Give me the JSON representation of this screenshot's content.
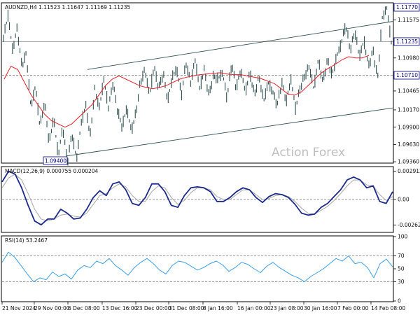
{
  "chart_data": [
    {
      "type": "line",
      "label": "AUDNZD,H4 1.11523 1.11647 1.11169 1.11235",
      "symbol": "AUDNZD",
      "timeframe": "H4",
      "ohlc_readout": {
        "open": 1.11523,
        "high": 1.11647,
        "low": 1.11169,
        "close": 1.11235
      },
      "ylim": [
        1.0935,
        1.1183
      ],
      "y_ticks": [
        "1.11575",
        "1.11235",
        "1.10980",
        "1.10710",
        "1.10465",
        "1.10170",
        "1.09900",
        "1.09630",
        "1.09360"
      ],
      "tick_values": [
        1.11575,
        1.11235,
        1.1098,
        1.1071,
        1.10465,
        1.1017,
        1.099,
        1.0963,
        1.0936
      ],
      "x_ticks": [
        "21 Nov 2024",
        "29 Nov 00:00",
        "6 Dec 08:00",
        "13 Dec 16:00",
        "23 Dec 00:00",
        "31 Dec 08:00",
        "8 Jan 16:00",
        "16 Jan 00:00",
        "23 Jan 08:00",
        "30 Jan 16:00",
        "7 Feb 00:00",
        "14 Feb 08:00"
      ],
      "price_tags": {
        "high": "1.11770",
        "current": "1.11235",
        "level": "1.10710"
      },
      "low_label": "1.09400",
      "watermark": "Action Forex",
      "price_path": [
        1.113,
        1.1165,
        1.111,
        1.1145,
        1.1085,
        1.1105,
        1.102,
        1.1055,
        1.099,
        1.103,
        1.0965,
        1.1005,
        1.0945,
        1.099,
        1.0935,
        1.098,
        1.094,
        1.0995,
        1.1025,
        1.0975,
        1.105,
        1.102,
        1.1065,
        1.102,
        1.106,
        1.1015,
        1.099,
        1.102,
        1.0985,
        1.101,
        1.106,
        1.108,
        1.104,
        1.1085,
        1.105,
        1.1075,
        1.103,
        1.107,
        1.108,
        1.104,
        1.109,
        1.106,
        1.1095,
        1.105,
        1.108,
        1.104,
        1.107,
        1.1065,
        1.1075,
        1.1035,
        1.109,
        1.105,
        1.108,
        1.1045,
        1.1075,
        1.104,
        1.107,
        1.103,
        1.106,
        1.1045,
        1.1025,
        1.106,
        1.103,
        1.1065,
        1.102,
        1.105,
        1.107,
        1.1085,
        1.105,
        1.1095,
        1.106,
        1.1095,
        1.107,
        1.11,
        1.112,
        1.115,
        1.111,
        1.114,
        1.11,
        1.1125,
        1.1085,
        1.111,
        1.1065,
        1.116,
        1.1177,
        1.1123
      ],
      "ma_path": [
        1.1065,
        1.1085,
        1.108,
        1.106,
        1.104,
        1.1025,
        1.101,
        1.1,
        1.0995,
        1.099,
        1.0995,
        1.1005,
        1.1015,
        1.1025,
        1.104,
        1.1055,
        1.1065,
        1.107,
        1.1065,
        1.106,
        1.1055,
        1.1052,
        1.105,
        1.1052,
        1.1055,
        1.106,
        1.1065,
        1.1068,
        1.107,
        1.1072,
        1.1073,
        1.1074,
        1.1075,
        1.1073,
        1.1072,
        1.1072,
        1.107,
        1.1068,
        1.1066,
        1.1062,
        1.1058,
        1.105,
        1.1042,
        1.104,
        1.1045,
        1.1055,
        1.1065,
        1.1075,
        1.1082,
        1.1088,
        1.1095,
        1.11,
        1.1098,
        1.1098,
        1.1102
      ],
      "channel": {
        "upper": [
          1.108,
          1.1155
        ],
        "lower": [
          1.0945,
          1.102
        ]
      }
    },
    {
      "type": "line",
      "label": "MACD(12,26,9) 0.000755 0.000204",
      "params": "12,26,9",
      "values_readout": {
        "macd": 0.000755,
        "signal": 0.000204
      },
      "ylim": [
        -0.0033,
        0.0033
      ],
      "y_ticks": [
        "0.002912",
        "0.00",
        "-0.002625"
      ],
      "tick_values": [
        0.002912,
        0.0,
        -0.002625
      ],
      "macd_path": [
        0.0018,
        0.0029,
        0.0026,
        0.0012,
        -0.0006,
        -0.0022,
        -0.0026,
        -0.002,
        -0.002,
        -0.001,
        -0.0014,
        -0.002,
        -0.0019,
        -0.001,
        0.0002,
        0.0009,
        0.0004,
        0.0016,
        0.0018,
        0.001,
        -0.0004,
        -0.0006,
        0.0002,
        0.0016,
        0.0016,
        0.0008,
        -0.0006,
        -0.0008,
        0.0004,
        0.0012,
        0.0013,
        0.0012,
        0.0008,
        -0.0002,
        -0.0002,
        0.0002,
        0.0008,
        0.0012,
        0.001,
        0.0002,
        -0.0003,
        0.0003,
        0.0006,
        0.0005,
        0.0002,
        -0.0005,
        -0.0014,
        -0.0016,
        -0.0015,
        -0.0008,
        -0.0004,
        0.0003,
        0.001,
        0.002,
        0.0023,
        0.002,
        0.0012,
        0.0014,
        -0.0002,
        -0.0004,
        0.0008
      ],
      "signal_path": [
        0.0012,
        0.0022,
        0.0026,
        0.002,
        0.0006,
        -0.001,
        -0.002,
        -0.0022,
        -0.002,
        -0.0016,
        -0.0015,
        -0.0017,
        -0.0018,
        -0.0014,
        -0.0005,
        0.0004,
        0.0006,
        0.0012,
        0.0016,
        0.0013,
        0.0004,
        -0.0002,
        -0.0002,
        0.0008,
        0.0014,
        0.0012,
        0.0002,
        -0.0005,
        -0.0001,
        0.0007,
        0.0012,
        0.0012,
        0.001,
        0.0003,
        0.0,
        0.0,
        0.0005,
        0.001,
        0.001,
        0.0005,
        0.0,
        0.0001,
        0.0004,
        0.0005,
        0.0003,
        -0.0002,
        -0.0009,
        -0.0014,
        -0.0015,
        -0.0011,
        -0.0007,
        -0.0001,
        0.0006,
        0.0014,
        0.002,
        0.002,
        0.0015,
        0.0014,
        0.0005,
        -0.0001,
        0.0003
      ]
    },
    {
      "type": "line",
      "label": "RSI(14) 53.2467",
      "params": "14",
      "value_readout": 53.2467,
      "ylim": [
        0,
        100
      ],
      "y_ticks": [
        "100",
        "70",
        "50",
        "30",
        "0"
      ],
      "tick_values": [
        100,
        70,
        50,
        30,
        0
      ],
      "rsi_path": [
        60,
        76,
        68,
        55,
        42,
        30,
        36,
        33,
        45,
        38,
        42,
        34,
        48,
        55,
        52,
        62,
        58,
        66,
        55,
        48,
        40,
        52,
        60,
        66,
        58,
        48,
        42,
        55,
        62,
        60,
        54,
        48,
        52,
        58,
        62,
        56,
        46,
        52,
        60,
        57,
        50,
        44,
        54,
        60,
        52,
        46,
        40,
        36,
        30,
        38,
        44,
        50,
        58,
        66,
        62,
        70,
        58,
        60,
        52,
        36,
        58,
        65,
        53
      ]
    }
  ],
  "colors": {
    "price": "#2f4f4f",
    "ma": "#e8202a",
    "macd": "#1c2a8c",
    "signal": "#a8a8a8",
    "rsi": "#3aa0e6",
    "channel": "#2f4f4f",
    "grid_dash": "#777777",
    "current_line": "#777777",
    "tag_bg": "#ffffff",
    "tag_border": "#000080"
  }
}
